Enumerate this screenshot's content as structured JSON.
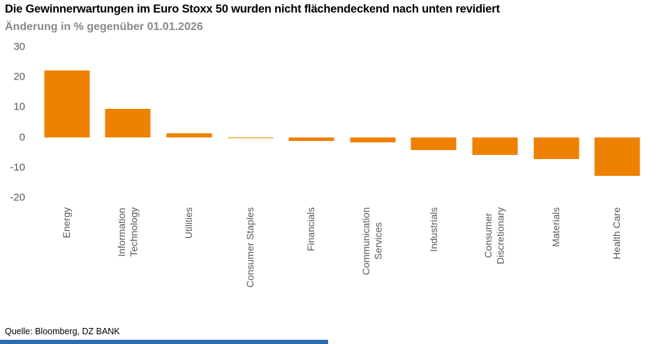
{
  "page": {
    "title": "Die Gewinnerwartungen im Euro Stoxx 50 wurden nicht flächendeckend nach unten revidiert",
    "subtitle": "Änderung in % gegenüber 01.01.2026",
    "source": "Quelle: Bloomberg, DZ BANK"
  },
  "colors": {
    "bar": "#EE8100",
    "subtitle_text": "#898989",
    "axis_text": "#595959",
    "footer_bar": "#2B6CB3"
  },
  "chart_data": {
    "type": "bar",
    "title": "Die Gewinnerwartungen im Euro Stoxx 50 wurden nicht flächendeckend nach unten revidiert",
    "subtitle": "Änderung in % gegenüber 01.01.2026",
    "categories": [
      "Energy",
      "Information\nTechnology",
      "Utilities",
      "Consumer Staples",
      "Financials",
      "Communication\nServices",
      "Industrials",
      "Consumer\nDiscretionary",
      "Materials",
      "Health Care"
    ],
    "values": [
      22.2,
      9.5,
      1.3,
      -0.3,
      -1.3,
      -1.6,
      -4.3,
      -5.8,
      -7.3,
      -12.8
    ],
    "xlabel": "",
    "ylabel": "Änderung in %",
    "ylim": [
      -20,
      30
    ],
    "yticks": [
      30,
      20,
      10,
      0,
      -10,
      -20
    ],
    "grid": false,
    "legend": false,
    "bar_color": "#EE8100",
    "source": "Quelle: Bloomberg, DZ BANK"
  }
}
